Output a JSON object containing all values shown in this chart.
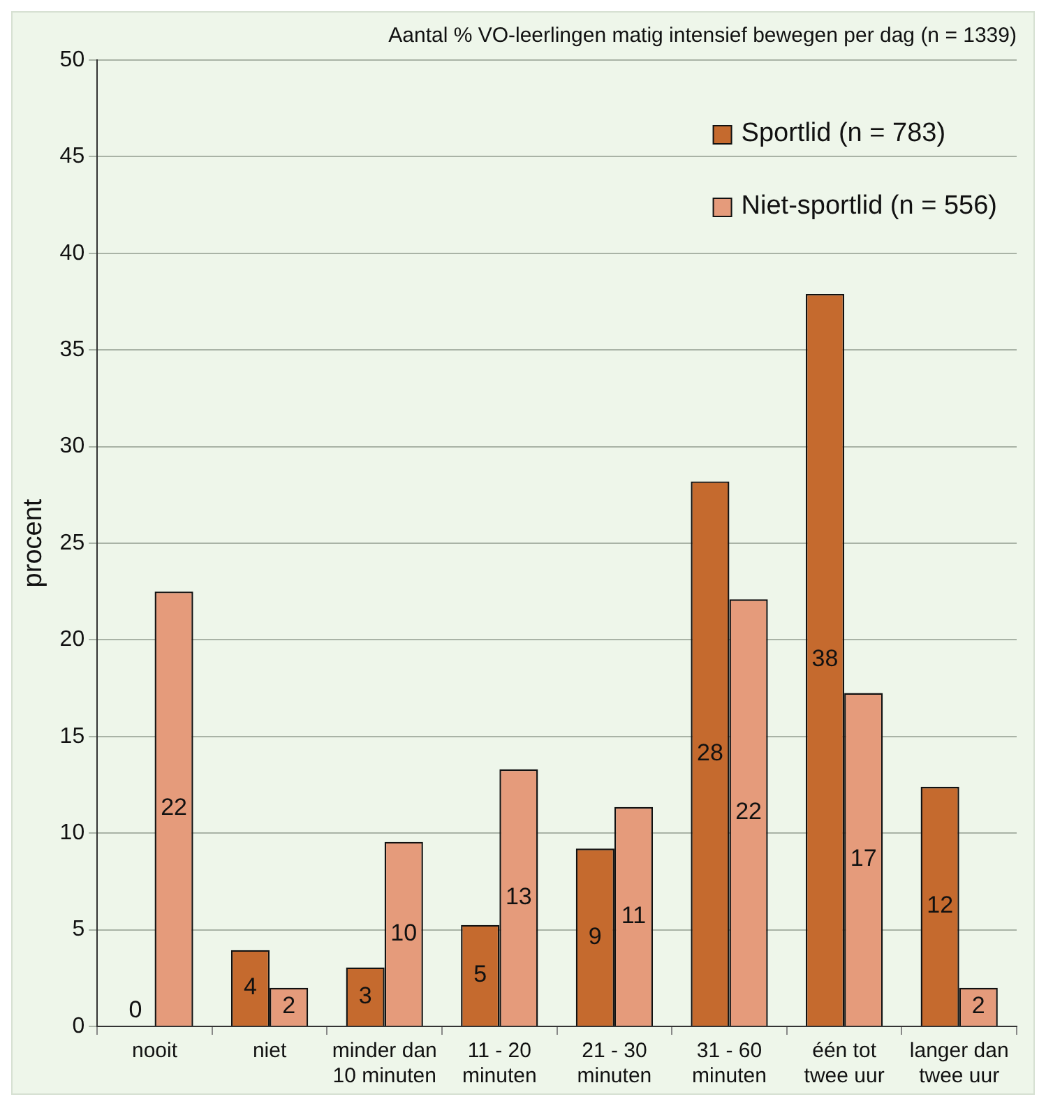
{
  "chart_data": {
    "type": "bar",
    "title": "Aantal % VO-leerlingen matig intensief bewegen per dag (n = 1339)",
    "ylabel": "procent",
    "categories": [
      "nooit",
      "niet",
      "minder dan 10 minuten",
      "11 - 20 minuten",
      "21 - 30 minuten",
      "31 - 60 minuten",
      "één tot twee uur",
      "langer dan twee uur"
    ],
    "series": [
      {
        "name": "Sportlid (n = 783)",
        "color": "#c56a2e",
        "values": [
          0,
          3.95,
          3.05,
          5.25,
          9.2,
          28.2,
          37.9,
          12.4
        ],
        "value_labels": [
          "0",
          "4",
          "3",
          "5",
          "9",
          "28",
          "38",
          "12"
        ]
      },
      {
        "name": "Niet-sportlid (n = 556)",
        "color": "#e59b7b",
        "values": [
          22.5,
          2.0,
          9.55,
          13.3,
          11.35,
          22.1,
          17.25,
          2.0
        ],
        "value_labels": [
          "22",
          "2",
          "10",
          "13",
          "11",
          "22",
          "17",
          "2"
        ]
      }
    ],
    "ylim": [
      0,
      50
    ],
    "yticks": [
      0,
      5,
      10,
      15,
      20,
      25,
      30,
      35,
      40,
      45,
      50
    ],
    "grid": "y",
    "legend": "top right"
  }
}
